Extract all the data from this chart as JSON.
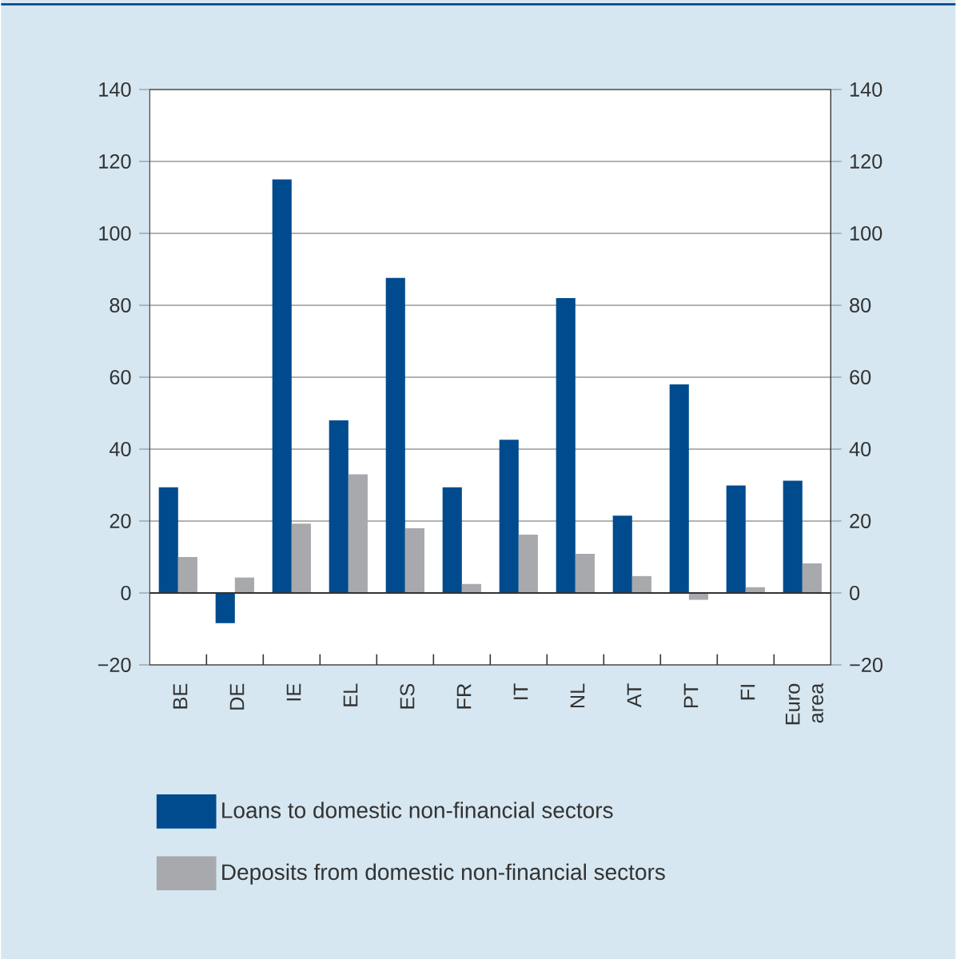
{
  "chart_data": {
    "type": "bar",
    "categories": [
      "BE",
      "DE",
      "IE",
      "EL",
      "ES",
      "FR",
      "IT",
      "NL",
      "AT",
      "PT",
      "FI",
      "Euro area"
    ],
    "series": [
      {
        "name": "Loans to domestic non-financial sectors",
        "color": "#004b8d",
        "values": [
          29.4,
          -8.4,
          115,
          48,
          87.6,
          29.4,
          42.6,
          82,
          21.5,
          58,
          29.9,
          31.2
        ]
      },
      {
        "name": "Deposits from domestic non-financial sectors",
        "color": "#a7a9ac",
        "values": [
          10,
          4.3,
          19.3,
          33,
          18,
          2.5,
          16.2,
          10.9,
          4.7,
          -1.9,
          1.6,
          8.2
        ]
      }
    ],
    "ylim": [
      -20,
      140
    ],
    "yticks": [
      {
        "value": -20,
        "label": "−20"
      },
      0,
      20,
      40,
      60,
      80,
      100,
      120,
      140
    ],
    "y2lim": [
      -20,
      140
    ],
    "y2ticks": [
      {
        "value": -20,
        "label": "−20"
      },
      0,
      20,
      40,
      60,
      80,
      100,
      120,
      140
    ],
    "grid": "y",
    "legend": "bottom"
  }
}
